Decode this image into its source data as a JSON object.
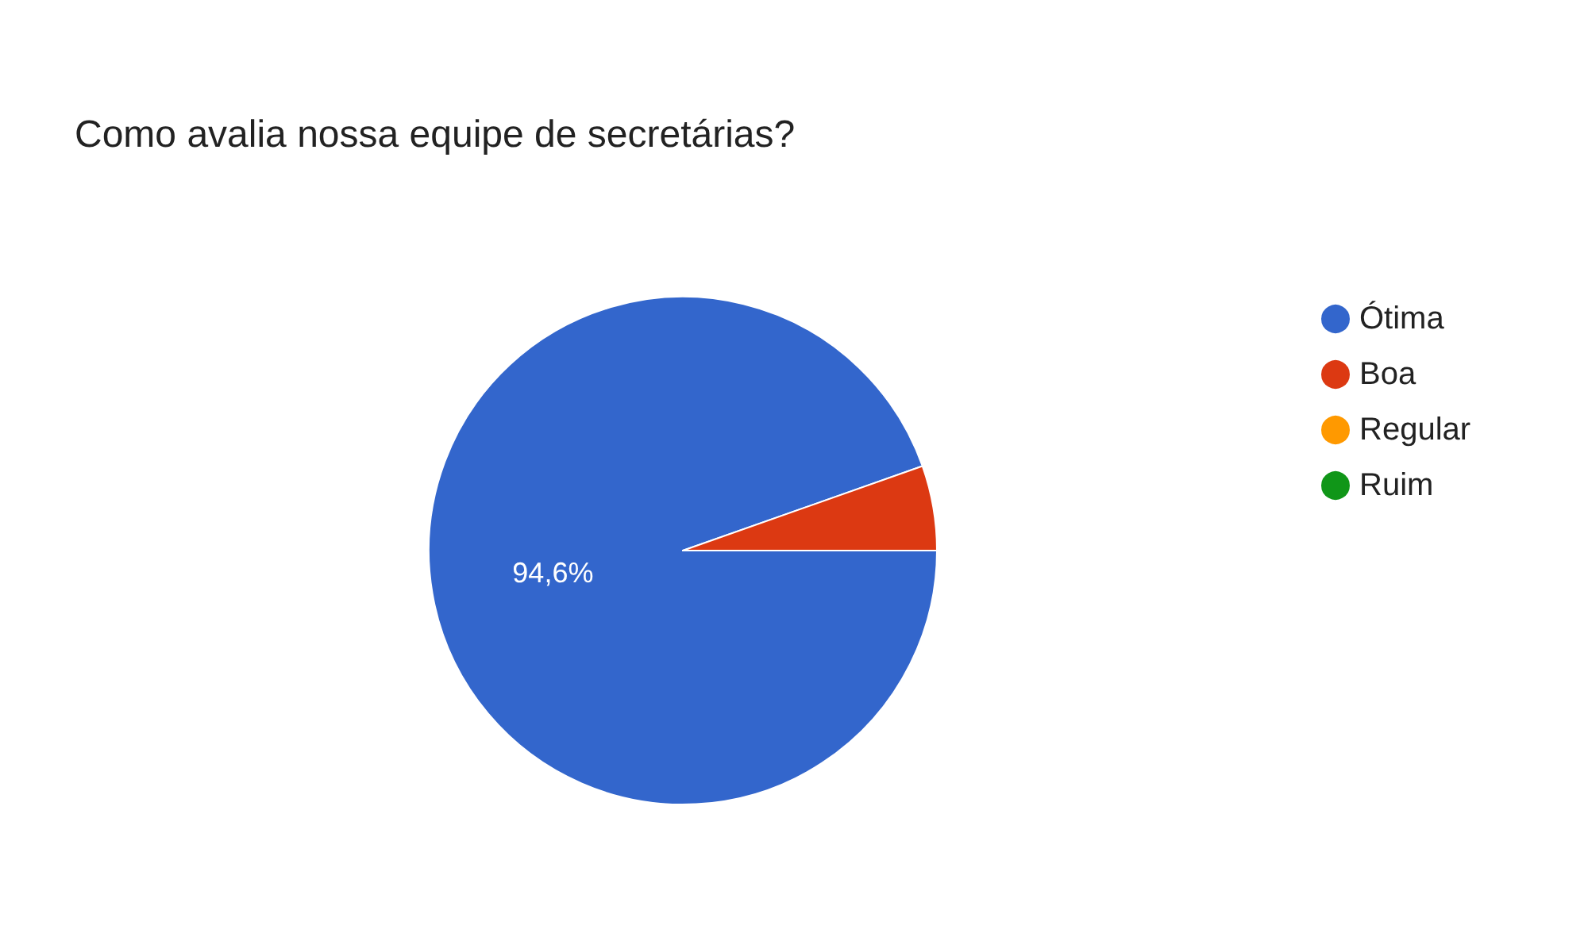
{
  "chart_data": {
    "type": "pie",
    "title": "Como avalia nossa equipe de secretárias?",
    "categories": [
      "Ótima",
      "Boa",
      "Regular",
      "Ruim"
    ],
    "values": [
      94.6,
      5.4,
      0,
      0
    ],
    "colors": [
      "#3366cc",
      "#dc3912",
      "#ff9900",
      "#109618"
    ],
    "value_labels": [
      "94,6%",
      null,
      null,
      null
    ],
    "legend": "right"
  }
}
